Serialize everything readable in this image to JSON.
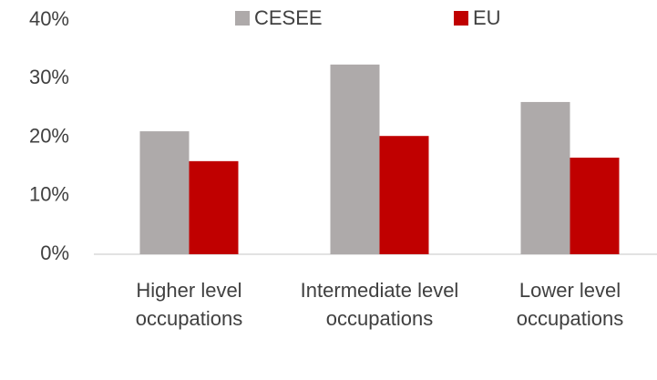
{
  "chart_data": {
    "type": "bar",
    "categories": [
      "Higher level occupations",
      "Intermediate level occupations",
      "Lower level occupations"
    ],
    "series": [
      {
        "name": "CESEE",
        "color": "#aeaaaa",
        "values": [
          21.0,
          32.4,
          26.0
        ]
      },
      {
        "name": "EU",
        "color": "#c00000",
        "values": [
          15.9,
          20.2,
          16.5
        ]
      }
    ],
    "ylim": [
      0,
      40
    ],
    "yticks": [
      {
        "value": 0,
        "label": "0%"
      },
      {
        "value": 10,
        "label": "10%"
      },
      {
        "value": 20,
        "label": "20%"
      },
      {
        "value": 30,
        "label": "30%"
      },
      {
        "value": 40,
        "label": "40%"
      }
    ],
    "grid": false,
    "legend": "top"
  }
}
